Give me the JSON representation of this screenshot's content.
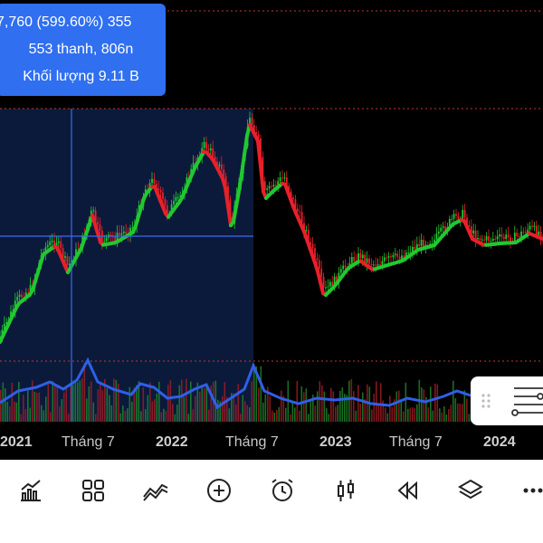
{
  "tooltip": {
    "line1": "7,760 (599.60%) 355",
    "line2": "553 thanh, 806n",
    "line3": "Khối lượng 9.11 B"
  },
  "x_axis": {
    "labels": [
      "2021",
      "Tháng 7",
      "2022",
      "Tháng 7",
      "2023",
      "Tháng 7",
      "2024"
    ]
  },
  "colors": {
    "selection": "#0b1a3a",
    "up": "#21c830",
    "down": "#e8202a",
    "volume_line": "#2f5fe6",
    "crosshair": "#3a6bf0",
    "accent": "#2f6ff0"
  },
  "toolbar": {
    "icons": [
      "chart-bar-icon",
      "grid-icon",
      "indicator-lines-icon",
      "add-icon",
      "alarm-clock-icon",
      "candlestick-icon",
      "replay-icon",
      "layers-icon",
      "more-icon"
    ]
  },
  "panel": {
    "icons": [
      "drag-handle-icon",
      "settings-lines-icon"
    ]
  }
}
